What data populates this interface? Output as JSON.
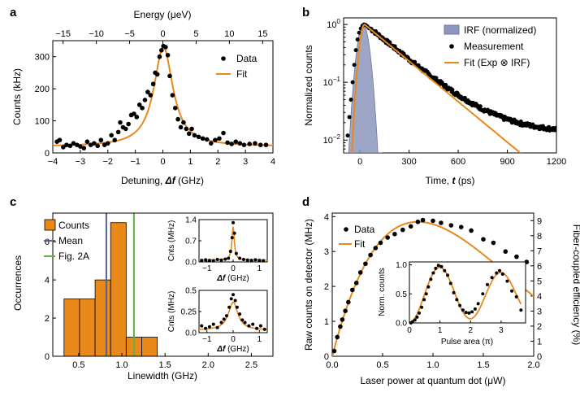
{
  "panels": [
    {
      "id": "a",
      "label": "a"
    },
    {
      "id": "b",
      "label": "b"
    },
    {
      "id": "c",
      "label": "c"
    },
    {
      "id": "d",
      "label": "d"
    }
  ],
  "colors": {
    "fit": "#e8891a",
    "data": "#000000",
    "irf": "#8c97bd",
    "mean": "#55608e",
    "fig2a": "#61b33d",
    "bar": "#e8891a"
  },
  "chart_data": [
    {
      "panel": "a",
      "type": "scatter",
      "xlabel_main": "Detuning, ",
      "xlabel_sym": "Δf",
      "xlabel_unit": " (GHz)",
      "ylabel": "Counts (kHz)",
      "top_label": "Energy (μeV)",
      "xlim": [
        -4,
        4
      ],
      "ylim": [
        0,
        350
      ],
      "xticks": [
        -4,
        -3,
        -2,
        -1,
        0,
        1,
        2,
        3,
        4
      ],
      "yticks": [
        0,
        100,
        200,
        300
      ],
      "top_ticks": [
        -15,
        -10,
        -5,
        0,
        5,
        10,
        15
      ],
      "legend": [
        "Data",
        "Fit"
      ],
      "fit": {
        "center": 0.02,
        "gamma": 0.42,
        "amplitude": 310,
        "baseline": 20
      },
      "points": [
        [
          -3.85,
          35
        ],
        [
          -3.75,
          40
        ],
        [
          -3.62,
          18
        ],
        [
          -3.5,
          25
        ],
        [
          -3.37,
          22
        ],
        [
          -3.25,
          30
        ],
        [
          -3.12,
          25
        ],
        [
          -3.0,
          20
        ],
        [
          -2.87,
          15
        ],
        [
          -2.75,
          35
        ],
        [
          -2.62,
          25
        ],
        [
          -2.5,
          30
        ],
        [
          -2.37,
          22
        ],
        [
          -2.25,
          40
        ],
        [
          -2.12,
          25
        ],
        [
          -2.0,
          30
        ],
        [
          -1.87,
          55
        ],
        [
          -1.75,
          40
        ],
        [
          -1.62,
          65
        ],
        [
          -1.55,
          95
        ],
        [
          -1.45,
          80
        ],
        [
          -1.35,
          75
        ],
        [
          -1.25,
          90
        ],
        [
          -1.15,
          118
        ],
        [
          -1.05,
          122
        ],
        [
          -0.95,
          112
        ],
        [
          -0.85,
          150
        ],
        [
          -0.75,
          140
        ],
        [
          -0.65,
          165
        ],
        [
          -0.55,
          190
        ],
        [
          -0.45,
          180
        ],
        [
          -0.35,
          215
        ],
        [
          -0.28,
          250
        ],
        [
          -0.2,
          245
        ],
        [
          -0.12,
          300
        ],
        [
          -0.05,
          320
        ],
        [
          0.02,
          333
        ],
        [
          0.1,
          330
        ],
        [
          0.18,
          305
        ],
        [
          0.25,
          240
        ],
        [
          0.35,
          180
        ],
        [
          0.45,
          140
        ],
        [
          0.55,
          105
        ],
        [
          0.65,
          80
        ],
        [
          0.75,
          95
        ],
        [
          0.85,
          75
        ],
        [
          0.95,
          60
        ],
        [
          1.05,
          75
        ],
        [
          1.15,
          55
        ],
        [
          1.3,
          50
        ],
        [
          1.45,
          45
        ],
        [
          1.6,
          42
        ],
        [
          1.75,
          30
        ],
        [
          1.9,
          40
        ],
        [
          2.05,
          45
        ],
        [
          2.2,
          62
        ],
        [
          2.35,
          32
        ],
        [
          2.5,
          28
        ],
        [
          2.65,
          35
        ],
        [
          2.8,
          30
        ],
        [
          2.95,
          25
        ],
        [
          3.15,
          28
        ],
        [
          3.35,
          30
        ],
        [
          3.55,
          25
        ],
        [
          3.75,
          25
        ]
      ]
    },
    {
      "panel": "b",
      "type": "line",
      "xlabel_main": "Time, ",
      "xlabel_sym": "t",
      "xlabel_unit": " (ps)",
      "ylabel": "Normalized counts",
      "xlim": [
        -100,
        1200
      ],
      "ylog": true,
      "ylim": [
        0.006,
        1.3
      ],
      "xticks": [
        0,
        300,
        600,
        900,
        1200
      ],
      "yticks": [
        {
          "value": 0.01,
          "base": "10",
          "exp": "−2"
        },
        {
          "value": 0.1,
          "base": "10",
          "exp": "−1"
        },
        {
          "value": 1,
          "base": "10",
          "exp": "0"
        }
      ],
      "legend": [
        "IRF (normalized)",
        "Measurement",
        "Fit (Exp ⊗ IRF)"
      ],
      "irf": {
        "center": 20,
        "sigma": 28
      },
      "decay_tau_ps": 186,
      "measurement_points_start": [
        [
          -75,
          0.012
        ],
        [
          -65,
          0.025
        ],
        [
          -55,
          0.05
        ],
        [
          -45,
          0.1
        ],
        [
          -35,
          0.2
        ],
        [
          -25,
          0.36
        ],
        [
          -15,
          0.55
        ],
        [
          -5,
          0.72
        ],
        [
          5,
          0.85
        ],
        [
          15,
          0.95
        ],
        [
          25,
          1.0
        ],
        [
          35,
          0.98
        ],
        [
          45,
          0.93
        ],
        [
          55,
          0.86
        ]
      ]
    },
    {
      "panel": "c",
      "type": "bar",
      "xlabel": "Linewidth (GHz)",
      "ylabel": "Occurrences",
      "xlim": [
        0.2,
        2.75
      ],
      "ylim": [
        0,
        7.5
      ],
      "xticks": [
        0.5,
        1.0,
        1.5,
        2.0,
        2.5
      ],
      "yticks": [
        0,
        2,
        4,
        6
      ],
      "bin_width": 0.18,
      "bins": [
        [
          0.33,
          3
        ],
        [
          0.51,
          3
        ],
        [
          0.69,
          4
        ],
        [
          0.87,
          7
        ],
        [
          1.05,
          1
        ],
        [
          1.23,
          1
        ]
      ],
      "mean": 0.82,
      "fig2a": 1.14,
      "legend": [
        "Counts",
        "Mean",
        "Fig. 2A"
      ],
      "insets": [
        {
          "ylabel": "Cnts (MHz)",
          "yticks": [
            "0.0",
            "0.7",
            "1.4"
          ],
          "ylim": [
            0,
            1.4
          ],
          "xlim": [
            -1.3,
            1.3
          ],
          "xticks": [
            "−1",
            "0",
            "1"
          ],
          "xlabel_sym": "Δf",
          "xlabel_unit": " (GHz)",
          "fit": {
            "center": 0.0,
            "gamma": 0.055,
            "amplitude": 1.1,
            "baseline": 0.06
          },
          "points": [
            [
              -1.2,
              0.05
            ],
            [
              -1.05,
              0.07
            ],
            [
              -0.9,
              0.05
            ],
            [
              -0.75,
              0.04
            ],
            [
              -0.6,
              0.08
            ],
            [
              -0.45,
              0.06
            ],
            [
              -0.3,
              0.09
            ],
            [
              -0.18,
              0.12
            ],
            [
              -0.1,
              0.35
            ],
            [
              -0.04,
              0.8
            ],
            [
              0.0,
              1.3
            ],
            [
              0.05,
              0.95
            ],
            [
              0.12,
              0.28
            ],
            [
              0.25,
              0.12
            ],
            [
              0.4,
              0.08
            ],
            [
              0.55,
              0.06
            ],
            [
              0.7,
              0.05
            ],
            [
              0.85,
              0.07
            ],
            [
              1.0,
              0.05
            ],
            [
              1.15,
              0.04
            ]
          ]
        },
        {
          "ylabel": "Cnts (MHz)",
          "yticks": [
            "0.0",
            "0.25",
            "0.5"
          ],
          "ylim": [
            0,
            0.5
          ],
          "xlim": [
            -1.3,
            1.3
          ],
          "xticks": [
            "−1",
            "0",
            "1"
          ],
          "xlabel_sym": "Δf",
          "xlabel_unit": " (GHz)",
          "fit": {
            "center": 0.0,
            "gamma": 0.22,
            "amplitude": 0.33,
            "baseline": 0.03
          },
          "points": [
            [
              -1.2,
              0.08
            ],
            [
              -1.05,
              0.05
            ],
            [
              -0.9,
              0.07
            ],
            [
              -0.75,
              0.1
            ],
            [
              -0.6,
              0.06
            ],
            [
              -0.45,
              0.12
            ],
            [
              -0.35,
              0.16
            ],
            [
              -0.25,
              0.2
            ],
            [
              -0.15,
              0.3
            ],
            [
              -0.07,
              0.4
            ],
            [
              0.0,
              0.45
            ],
            [
              0.08,
              0.38
            ],
            [
              0.15,
              0.3
            ],
            [
              0.25,
              0.22
            ],
            [
              0.35,
              0.15
            ],
            [
              0.45,
              0.12
            ],
            [
              0.6,
              0.08
            ],
            [
              0.75,
              0.1
            ],
            [
              0.9,
              0.05
            ],
            [
              1.05,
              0.08
            ],
            [
              1.2,
              0.04
            ]
          ]
        }
      ]
    },
    {
      "panel": "d",
      "type": "scatter",
      "xlabel": "Laser power at quantum dot (μW)",
      "ylabel": "Raw counts on detector (MHz)",
      "ylabel_right": "Fiber-coupled efficiency (%)",
      "xlim": [
        0,
        2.0
      ],
      "ylim": [
        0,
        4.1
      ],
      "ylim_right": [
        0,
        9.5
      ],
      "xticks": [
        0.0,
        0.5,
        1.0,
        1.5,
        2.0
      ],
      "yticks": [
        0,
        1,
        2,
        3,
        4
      ],
      "yticks_right": [
        0,
        1,
        2,
        3,
        4,
        5,
        6,
        7,
        8,
        9
      ],
      "legend": [
        "Data",
        "Fit"
      ],
      "fit_Imax": 3.85,
      "fit_Psat": 0.85,
      "points": [
        [
          0.02,
          0.15
        ],
        [
          0.05,
          0.55
        ],
        [
          0.08,
          0.85
        ],
        [
          0.1,
          1.05
        ],
        [
          0.13,
          1.3
        ],
        [
          0.16,
          1.55
        ],
        [
          0.2,
          1.9
        ],
        [
          0.24,
          2.1
        ],
        [
          0.28,
          2.4
        ],
        [
          0.33,
          2.65
        ],
        [
          0.38,
          2.9
        ],
        [
          0.43,
          3.1
        ],
        [
          0.48,
          3.25
        ],
        [
          0.55,
          3.4
        ],
        [
          0.62,
          3.5
        ],
        [
          0.7,
          3.62
        ],
        [
          0.78,
          3.72
        ],
        [
          0.85,
          3.85
        ],
        [
          0.9,
          3.9
        ],
        [
          1.0,
          3.88
        ],
        [
          1.08,
          3.82
        ],
        [
          1.18,
          3.75
        ],
        [
          1.28,
          3.7
        ],
        [
          1.38,
          3.6
        ],
        [
          1.5,
          3.35
        ],
        [
          1.6,
          3.25
        ],
        [
          1.72,
          3.0
        ],
        [
          1.83,
          2.85
        ],
        [
          1.93,
          2.7
        ]
      ],
      "inset": {
        "xlabel": "Pulse area (π)",
        "ylabel": "Norm. counts",
        "xlim": [
          0,
          3.8
        ],
        "ylim": [
          0,
          1.05
        ],
        "xticks": [
          "0",
          "1",
          "2",
          "3"
        ],
        "yticks": [
          "0.0",
          "0.5",
          "1.0"
        ],
        "points": [
          [
            0.05,
            0.0
          ],
          [
            0.1,
            0.02
          ],
          [
            0.18,
            0.05
          ],
          [
            0.25,
            0.1
          ],
          [
            0.32,
            0.17
          ],
          [
            0.4,
            0.27
          ],
          [
            0.48,
            0.4
          ],
          [
            0.55,
            0.5
          ],
          [
            0.62,
            0.62
          ],
          [
            0.7,
            0.75
          ],
          [
            0.78,
            0.86
          ],
          [
            0.86,
            0.94
          ],
          [
            0.95,
            0.99
          ],
          [
            1.05,
            0.97
          ],
          [
            1.15,
            0.9
          ],
          [
            1.25,
            0.82
          ],
          [
            1.35,
            0.68
          ],
          [
            1.45,
            0.52
          ],
          [
            1.55,
            0.4
          ],
          [
            1.65,
            0.3
          ],
          [
            1.75,
            0.22
          ],
          [
            1.85,
            0.18
          ],
          [
            1.95,
            0.17
          ],
          [
            2.05,
            0.19
          ],
          [
            2.15,
            0.24
          ],
          [
            2.25,
            0.33
          ],
          [
            2.4,
            0.5
          ],
          [
            2.55,
            0.66
          ],
          [
            2.7,
            0.78
          ],
          [
            2.85,
            0.86
          ],
          [
            2.95,
            0.9
          ],
          [
            3.05,
            0.84
          ],
          [
            3.2,
            0.72
          ],
          [
            3.35,
            0.55
          ],
          [
            3.5,
            0.45
          ],
          [
            3.65,
            0.22
          ]
        ]
      }
    }
  ]
}
